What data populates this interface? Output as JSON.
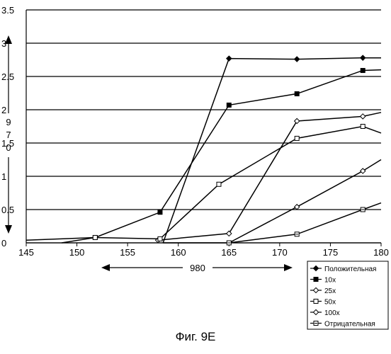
{
  "chart_data": {
    "type": "line",
    "title": "",
    "xlabel": "980",
    "ylabel": "970",
    "xlim": [
      145,
      180
    ],
    "ylim": [
      0,
      3.5
    ],
    "xticks": [
      "145",
      "150",
      "155",
      "160",
      "165",
      "170",
      "175",
      "180"
    ],
    "yticks": [
      "0",
      "0.5",
      "1",
      "1.5",
      "2",
      "2.5",
      "3",
      "3.5"
    ],
    "grid": "horizontal",
    "legend_position": "bottom-right",
    "series": [
      {
        "name": "Положительная",
        "marker": "diamond-filled",
        "x": [
          158.5,
          165,
          171.7,
          178.2,
          180
        ],
        "y": [
          0,
          2.77,
          2.76,
          2.78,
          2.78
        ]
      },
      {
        "name": "10x",
        "marker": "square-filled",
        "x": [
          145,
          151.8,
          158.2,
          165,
          171.7,
          178.2,
          180
        ],
        "y": [
          0.04,
          0.08,
          0.46,
          2.07,
          2.24,
          2.59,
          2.6
        ]
      },
      {
        "name": "25x",
        "marker": "diamond-open",
        "x": [
          158,
          165,
          171.7,
          178.2,
          180
        ],
        "y": [
          0.04,
          0.14,
          1.83,
          1.9,
          1.96
        ]
      },
      {
        "name": "50x",
        "marker": "square-open",
        "x": [
          148.5,
          151.8,
          158.2,
          164,
          171.7,
          178.2,
          180
        ],
        "y": [
          0,
          0.08,
          0.06,
          0.88,
          1.57,
          1.75,
          1.65
        ]
      },
      {
        "name": "100x",
        "marker": "diamond-open",
        "x": [
          165,
          171.7,
          178.2,
          180
        ],
        "y": [
          0,
          0.54,
          1.08,
          1.25
        ]
      },
      {
        "name": "Отрицательная",
        "marker": "square-dot",
        "x": [
          158.5,
          165,
          171.7,
          178.2,
          180
        ],
        "y": [
          0,
          0,
          0.13,
          0.5,
          0.6
        ]
      }
    ],
    "caption": "Фиг. 9E"
  }
}
